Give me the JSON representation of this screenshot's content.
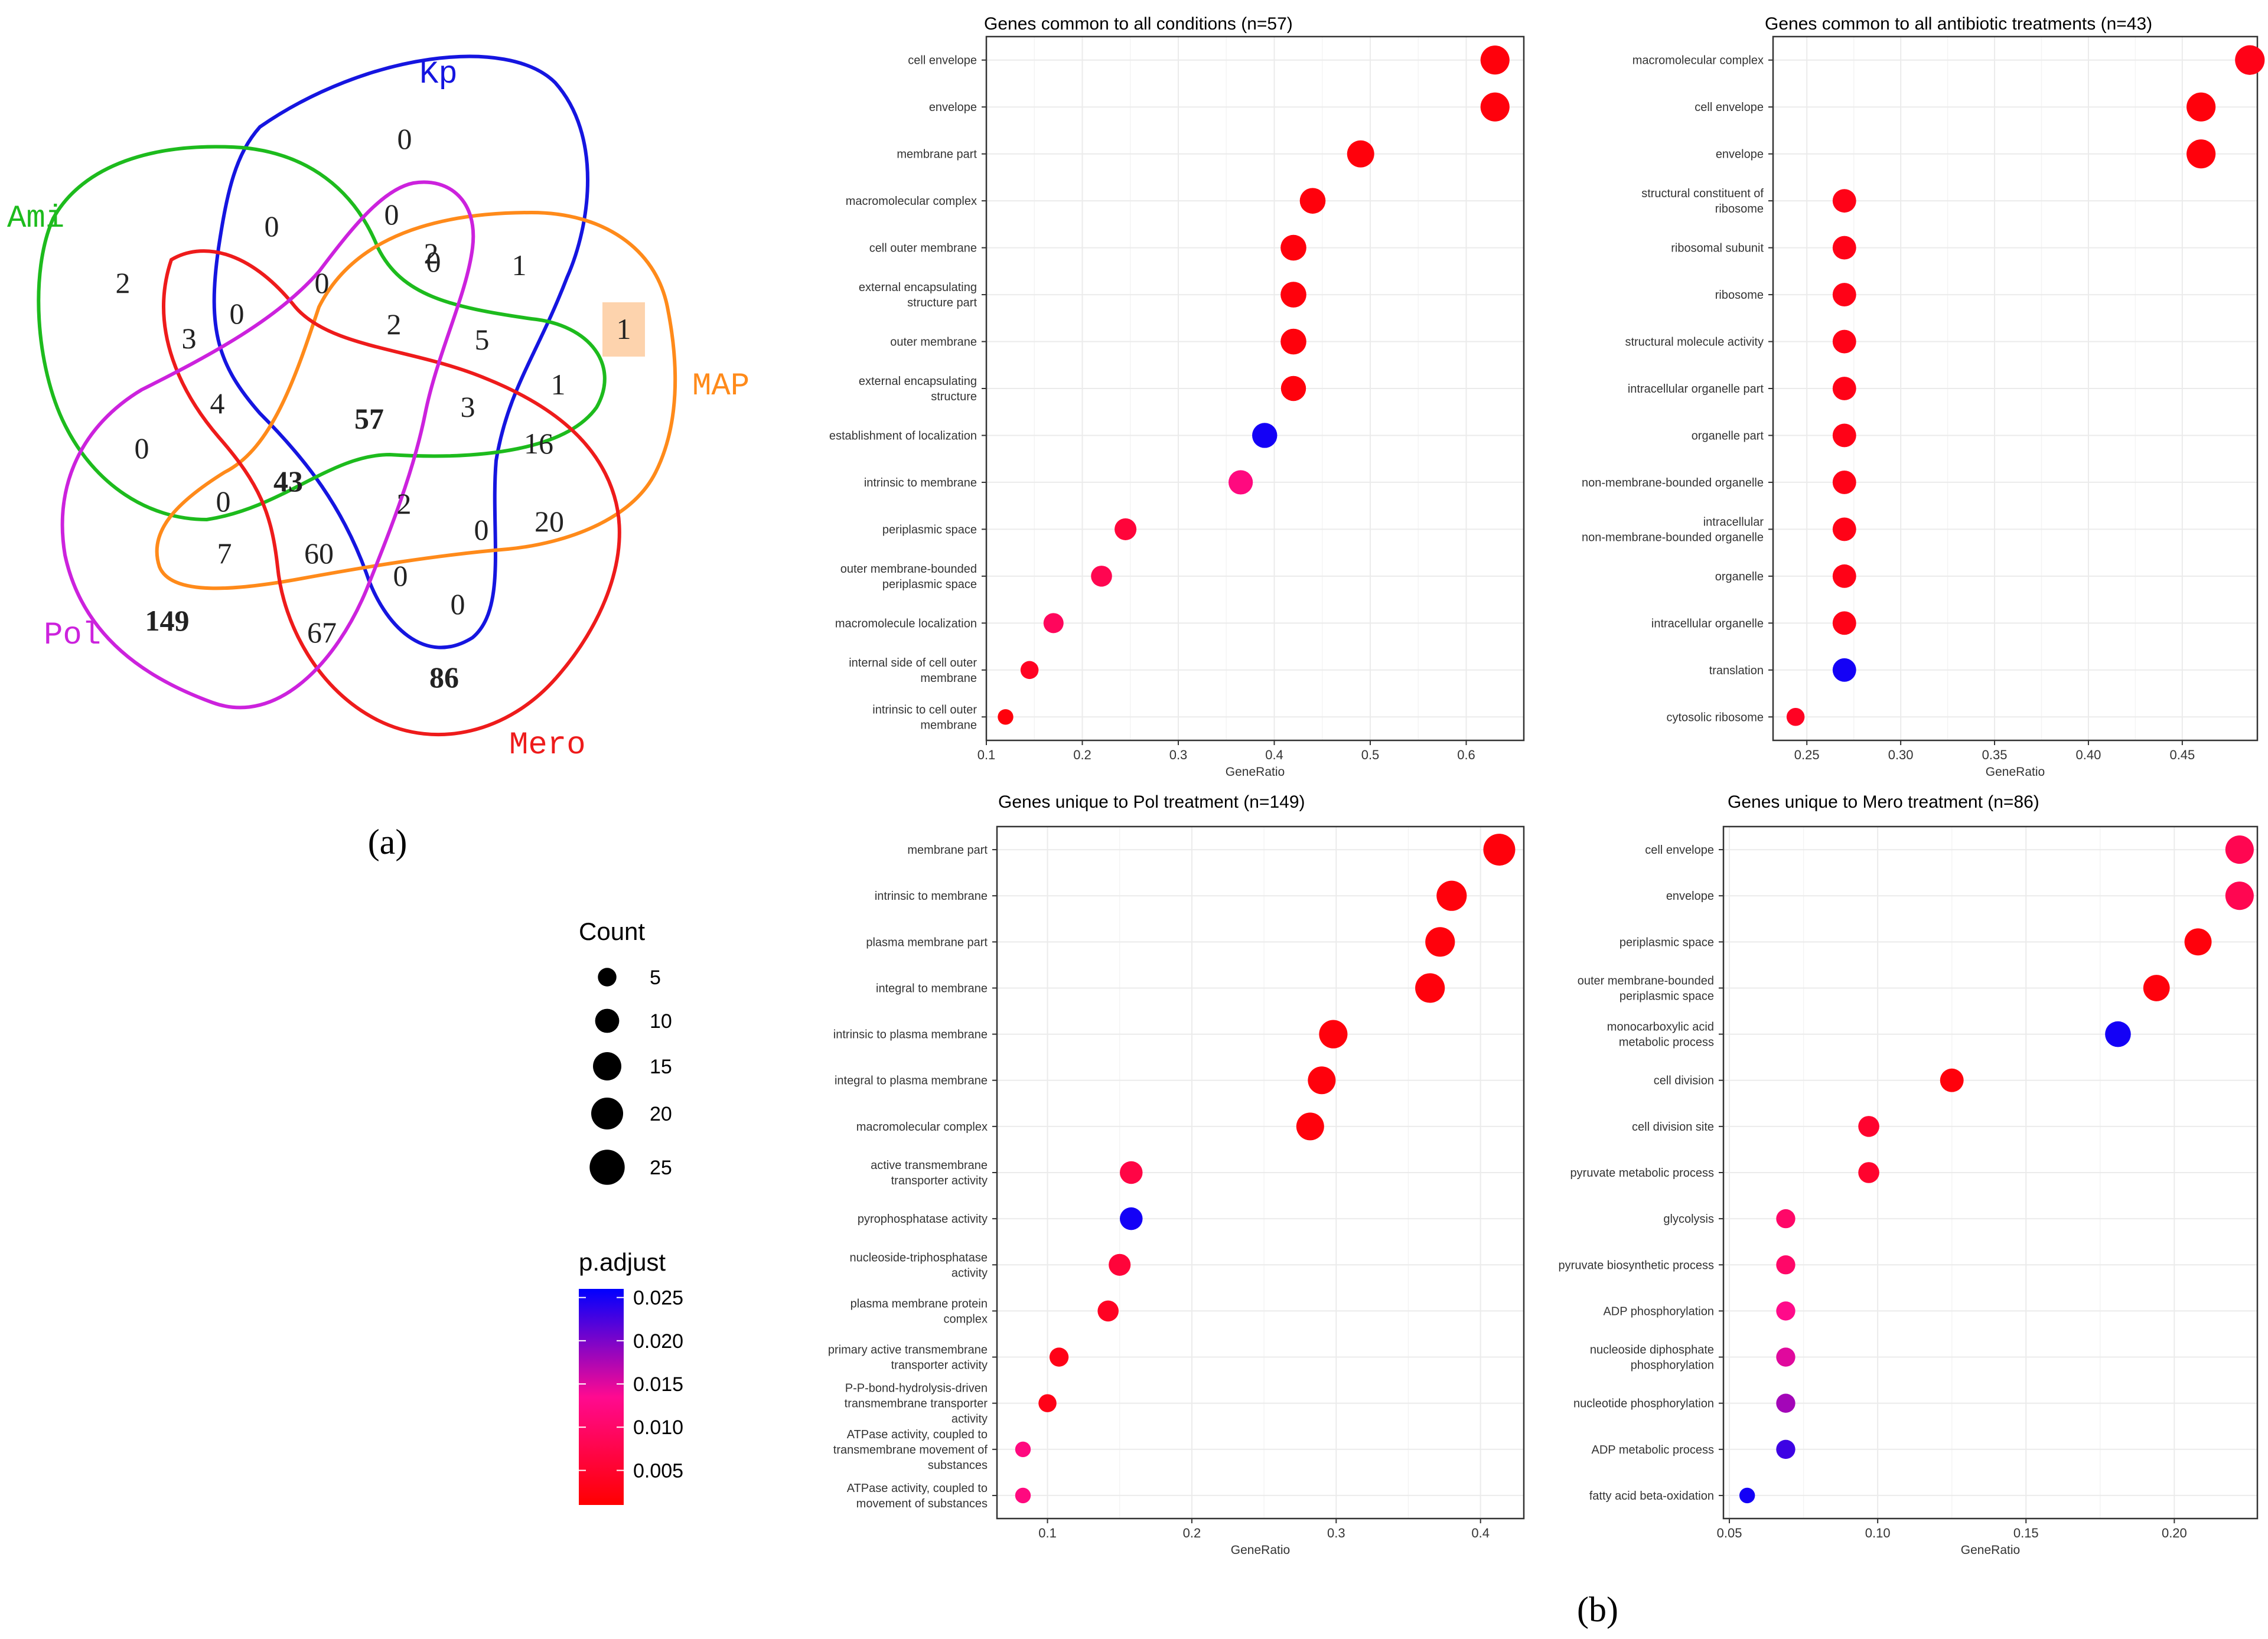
{
  "figure_labels": {
    "a": "(a)",
    "b": "(b)"
  },
  "venn": {
    "sets": [
      {
        "name": "Kp",
        "color": "#1515e0"
      },
      {
        "name": "Ami",
        "color": "#1dbb1d"
      },
      {
        "name": "MAP",
        "color": "#ff8a1a"
      },
      {
        "name": "Mero",
        "color": "#ee1b1b"
      },
      {
        "name": "Pol",
        "color": "#cc22dd"
      }
    ],
    "regions": [
      "0",
      "0",
      "0",
      "2",
      "0",
      "1",
      "2",
      "3",
      "0",
      "0",
      "3",
      "2",
      "5",
      "1",
      "1",
      "4",
      "57",
      "3",
      "16",
      "0",
      "0",
      "43",
      "2",
      "0",
      "20",
      "7",
      "60",
      "0",
      "0",
      "149",
      "67",
      "86"
    ],
    "bold_regions": [
      "57",
      "43",
      "149",
      "86"
    ],
    "highlight_region": "1",
    "highlight_color": "#fdd3ad"
  },
  "legend": {
    "count_title": "Count",
    "count_values": [
      "5",
      "10",
      "15",
      "20",
      "25"
    ],
    "padjust_title": "p.adjust",
    "padjust_ticks": [
      "0.025",
      "0.020",
      "0.015",
      "0.010",
      "0.005"
    ],
    "gradient_colors": [
      "#0000ff",
      "#ff0000"
    ]
  },
  "chart_data": [
    {
      "type": "scatter",
      "title": "Genes common to all conditions (n=57)",
      "xlabel": "GeneRatio",
      "xlim": [
        0.1,
        0.66
      ],
      "xticks": [
        0.1,
        0.2,
        0.3,
        0.4,
        0.5,
        0.6
      ],
      "xtick_labels": [
        "0.1",
        "0.2",
        "0.3",
        "0.4",
        "0.5",
        "0.6"
      ],
      "categories": [
        "cell envelope",
        "envelope",
        "membrane part",
        "macromolecular complex",
        "cell outer membrane",
        "external encapsulating\nstructure part",
        "outer membrane",
        "external encapsulating\nstructure",
        "establishment of localization",
        "intrinsic to membrane",
        "periplasmic space",
        "outer membrane-bounded\nperiplasmic space",
        "macromolecule localization",
        "internal side of cell outer\nmembrane",
        "intrinsic to cell outer\nmembrane"
      ],
      "gene_ratio": [
        0.63,
        0.63,
        0.49,
        0.44,
        0.42,
        0.42,
        0.42,
        0.42,
        0.39,
        0.365,
        0.245,
        0.22,
        0.17,
        0.145,
        0.12
      ],
      "count": [
        20,
        20,
        17,
        15,
        15,
        15,
        15,
        14,
        14,
        13,
        10,
        9,
        8,
        6,
        4
      ],
      "p_adjust": [
        0.002,
        0.002,
        0.002,
        0.002,
        0.002,
        0.002,
        0.002,
        0.002,
        0.025,
        0.012,
        0.006,
        0.008,
        0.009,
        0.004,
        0.002
      ]
    },
    {
      "type": "scatter",
      "title": "Genes common to all antibiotic treatments (n=43)",
      "xlabel": "GeneRatio",
      "xlim": [
        0.232,
        0.49
      ],
      "xticks": [
        0.25,
        0.3,
        0.35,
        0.4,
        0.45
      ],
      "xtick_labels": [
        "0.25",
        "0.30",
        "0.35",
        "0.40",
        "0.45"
      ],
      "categories": [
        "macromolecular complex",
        "cell envelope",
        "envelope",
        "structural constituent of\nribosome",
        "ribosomal subunit",
        "ribosome",
        "structural molecule activity",
        "intracellular organelle part",
        "organelle part",
        "non-membrane-bounded organelle",
        "intracellular\nnon-membrane-bounded organelle",
        "organelle",
        "intracellular organelle",
        "translation",
        "cytosolic ribosome"
      ],
      "gene_ratio": [
        0.486,
        0.46,
        0.46,
        0.27,
        0.27,
        0.27,
        0.27,
        0.27,
        0.27,
        0.27,
        0.27,
        0.27,
        0.27,
        0.27,
        0.244
      ],
      "count": [
        21,
        20,
        20,
        12,
        12,
        12,
        12,
        12,
        12,
        12,
        12,
        12,
        12,
        12,
        6
      ],
      "p_adjust": [
        0.003,
        0.002,
        0.002,
        0.003,
        0.003,
        0.003,
        0.003,
        0.003,
        0.003,
        0.003,
        0.003,
        0.003,
        0.003,
        0.025,
        0.004
      ]
    },
    {
      "type": "scatter",
      "title": "Genes unique to Pol treatment (n=149)",
      "xlabel": "GeneRatio",
      "xlim": [
        0.065,
        0.43
      ],
      "xticks": [
        0.1,
        0.2,
        0.3,
        0.4
      ],
      "xtick_labels": [
        "0.1",
        "0.2",
        "0.3",
        "0.4"
      ],
      "categories": [
        "membrane part",
        "intrinsic to membrane",
        "plasma membrane part",
        "integral to membrane",
        "intrinsic to plasma membrane",
        "integral to plasma membrane",
        "macromolecular complex",
        "active transmembrane\ntransporter activity",
        "pyrophosphatase activity",
        "nucleoside-triphosphatase\nactivity",
        "plasma membrane protein\ncomplex",
        "primary active transmembrane\ntransporter activity",
        "P-P-bond-hydrolysis-driven\ntransmembrane transporter\nactivity",
        "ATPase activity, coupled to\ntransmembrane movement of\nsubstances",
        "ATPase activity, coupled to\nmovement of substances"
      ],
      "gene_ratio": [
        0.413,
        0.38,
        0.372,
        0.365,
        0.298,
        0.29,
        0.282,
        0.158,
        0.158,
        0.15,
        0.142,
        0.108,
        0.1,
        0.083,
        0.083
      ],
      "count": [
        25,
        22,
        21,
        21,
        19,
        18,
        18,
        11,
        11,
        10,
        9,
        7,
        6,
        4,
        4
      ],
      "p_adjust": [
        0.002,
        0.002,
        0.002,
        0.002,
        0.002,
        0.002,
        0.002,
        0.007,
        0.025,
        0.006,
        0.004,
        0.003,
        0.003,
        0.012,
        0.012
      ]
    },
    {
      "type": "scatter",
      "title": "Genes unique to Mero treatment (n=86)",
      "xlabel": "GeneRatio",
      "xlim": [
        0.048,
        0.228
      ],
      "xticks": [
        0.05,
        0.1,
        0.15,
        0.2
      ],
      "xtick_labels": [
        "0.05",
        "0.10",
        "0.15",
        "0.20"
      ],
      "categories": [
        "cell envelope",
        "envelope",
        "periplasmic space",
        "outer membrane-bounded\nperiplasmic space",
        "monocarboxylic acid\nmetabolic process",
        "cell division",
        "cell division site",
        "pyruvate metabolic process",
        "glycolysis",
        "pyruvate biosynthetic process",
        "ADP phosphorylation",
        "nucleoside diphosphate\nphosphorylation",
        "nucleotide phosphorylation",
        "ADP metabolic process",
        "fatty acid beta-oxidation"
      ],
      "gene_ratio": [
        0.222,
        0.222,
        0.208,
        0.194,
        0.181,
        0.125,
        0.097,
        0.097,
        0.069,
        0.069,
        0.069,
        0.069,
        0.069,
        0.069,
        0.056
      ],
      "count": [
        19,
        19,
        17,
        16,
        15,
        12,
        9,
        9,
        7,
        7,
        7,
        7,
        7,
        7,
        4
      ],
      "p_adjust": [
        0.008,
        0.008,
        0.002,
        0.002,
        0.025,
        0.002,
        0.005,
        0.005,
        0.01,
        0.01,
        0.013,
        0.015,
        0.018,
        0.023,
        0.025
      ]
    }
  ]
}
